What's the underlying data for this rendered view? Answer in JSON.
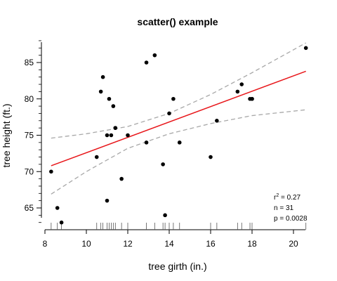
{
  "chart_data": {
    "type": "scatter",
    "title": "scatter() example",
    "xlabel": "tree girth (in.)",
    "ylabel": "tree height (ft.)",
    "xlim": [
      8,
      20.8
    ],
    "ylim": [
      63,
      88
    ],
    "xticks": [
      8,
      10,
      12,
      14,
      16,
      18,
      20
    ],
    "yticks": [
      65,
      70,
      75,
      80,
      85
    ],
    "points": [
      {
        "x": 8.3,
        "y": 70
      },
      {
        "x": 8.6,
        "y": 65
      },
      {
        "x": 8.8,
        "y": 63
      },
      {
        "x": 10.5,
        "y": 72
      },
      {
        "x": 10.7,
        "y": 81
      },
      {
        "x": 10.8,
        "y": 83
      },
      {
        "x": 11.0,
        "y": 66
      },
      {
        "x": 11.0,
        "y": 75
      },
      {
        "x": 11.1,
        "y": 80
      },
      {
        "x": 11.2,
        "y": 75
      },
      {
        "x": 11.3,
        "y": 79
      },
      {
        "x": 11.4,
        "y": 76
      },
      {
        "x": 11.4,
        "y": 76
      },
      {
        "x": 11.7,
        "y": 69
      },
      {
        "x": 12.0,
        "y": 75
      },
      {
        "x": 12.9,
        "y": 74
      },
      {
        "x": 12.9,
        "y": 85
      },
      {
        "x": 13.3,
        "y": 86
      },
      {
        "x": 13.7,
        "y": 71
      },
      {
        "x": 13.8,
        "y": 64
      },
      {
        "x": 14.0,
        "y": 78
      },
      {
        "x": 14.2,
        "y": 80
      },
      {
        "x": 14.5,
        "y": 74
      },
      {
        "x": 16.0,
        "y": 72
      },
      {
        "x": 16.3,
        "y": 77
      },
      {
        "x": 17.3,
        "y": 81
      },
      {
        "x": 17.5,
        "y": 82
      },
      {
        "x": 17.9,
        "y": 80
      },
      {
        "x": 18.0,
        "y": 80
      },
      {
        "x": 18.0,
        "y": 80
      },
      {
        "x": 20.6,
        "y": 87
      }
    ],
    "fit_line": {
      "color": "#e8171b",
      "x": [
        8.3,
        20.6
      ],
      "y": [
        70.8,
        83.8
      ]
    },
    "confidence_band": {
      "color": "#a8a8a8",
      "upper": {
        "x": [
          8.3,
          10,
          12,
          14,
          16,
          18,
          20.6
        ],
        "y": [
          74.6,
          75.2,
          76.2,
          78.0,
          80.6,
          83.6,
          87.7
        ]
      },
      "lower": {
        "x": [
          8.3,
          10,
          12,
          14,
          16,
          18,
          20.6
        ],
        "y": [
          66.9,
          70.0,
          73.2,
          75.2,
          76.6,
          77.7,
          78.5
        ]
      }
    },
    "rug": [
      8.3,
      8.6,
      8.8,
      10.5,
      10.7,
      10.8,
      11.0,
      11.1,
      11.2,
      11.3,
      11.4,
      11.7,
      12.0,
      12.9,
      13.3,
      13.7,
      13.8,
      14.0,
      14.2,
      14.5,
      16.0,
      16.3,
      17.3,
      17.5,
      17.9,
      18.0,
      20.6
    ],
    "stats": {
      "r2_prefix": "r",
      "r2_sup": "2",
      "r2_value": " = 0.27",
      "n": "n = 31",
      "p": "p = 0.0028"
    },
    "grid": false,
    "point_color": "#000000"
  }
}
